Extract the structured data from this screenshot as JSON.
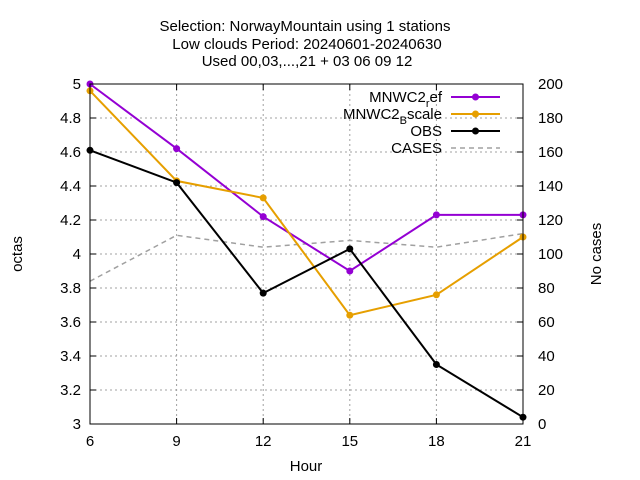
{
  "chart_data": {
    "type": "line",
    "title_lines": [
      "Selection: NorwayMountain using     1 stations",
      "Low clouds   Period: 20240601-20240630",
      "Used 00,03,...,21 + 03 06 09 12"
    ],
    "xlabel": "Hour",
    "ylabel": "octas",
    "y2label": "No cases",
    "x": [
      6,
      9,
      12,
      15,
      18,
      21
    ],
    "xlim": [
      6,
      21
    ],
    "ylim": [
      3,
      5
    ],
    "y2lim": [
      0,
      200
    ],
    "xticks": [
      "6",
      "9",
      "12",
      "15",
      "18",
      "21"
    ],
    "yticks": [
      "3",
      "3.2",
      "3.4",
      "3.6",
      "3.8",
      "4",
      "4.2",
      "4.4",
      "4.6",
      "4.8",
      "5"
    ],
    "y2ticks": [
      "0",
      "20",
      "40",
      "60",
      "80",
      "100",
      "120",
      "140",
      "160",
      "180",
      "200"
    ],
    "grid": true,
    "legend_position": "top-right",
    "series": [
      {
        "name": "MNWC2_ref",
        "legend_main": "MNWC2",
        "legend_sub": "r",
        "legend_rest": "ef",
        "color": "#9400d3",
        "axis": "y",
        "style": "solid-markers",
        "values": [
          5.0,
          4.62,
          4.22,
          3.9,
          4.23,
          4.23
        ]
      },
      {
        "name": "MNWC2_Bscale",
        "legend_main": "MNWC2",
        "legend_sub": "B",
        "legend_rest": "scale",
        "color": "#e69f00",
        "axis": "y",
        "style": "solid-markers",
        "values": [
          4.96,
          4.43,
          4.33,
          3.64,
          3.76,
          4.1
        ]
      },
      {
        "name": "OBS",
        "legend_main": "OBS",
        "legend_sub": "",
        "legend_rest": "",
        "color": "#000000",
        "axis": "y",
        "style": "solid-markers",
        "values": [
          4.61,
          4.42,
          3.77,
          4.03,
          3.35,
          3.04
        ]
      },
      {
        "name": "CASES",
        "legend_main": "CASES",
        "legend_sub": "",
        "legend_rest": "",
        "color": "#a0a0a0",
        "axis": "y2",
        "style": "dashed",
        "values": [
          84,
          111,
          104,
          108,
          104,
          112
        ]
      }
    ]
  }
}
